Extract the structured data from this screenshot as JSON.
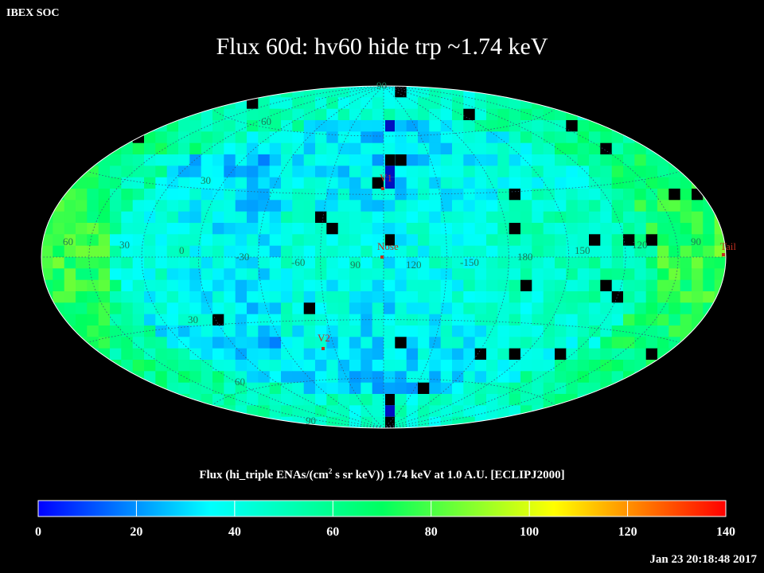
{
  "header": {
    "source": "IBEX SOC",
    "title": "Flux   60d: hv60 hide trp ~1.74 keV"
  },
  "map": {
    "projection": "Hammer-Aitoff",
    "frame": "ECLIPJ2000",
    "center_lon_deg": 90,
    "lat_labels": [
      "90",
      "60",
      "30",
      "30",
      "60",
      "90"
    ],
    "lon_labels": [
      "60",
      "30",
      "0",
      "-30",
      "-60",
      "90",
      "120",
      "-150",
      "180",
      "150",
      "120",
      "90"
    ],
    "markers": [
      {
        "label": "V1",
        "color": "#c03020"
      },
      {
        "label": "Nose",
        "color": "#c03020"
      },
      {
        "label": "V2",
        "color": "#c03020"
      },
      {
        "label": "Tail",
        "color": "#c03020"
      }
    ]
  },
  "colorbar": {
    "title_prefix": "Flux (hi_triple ENAs/(cm",
    "title_sup": "2",
    "title_suffix": " s sr keV))  1.74 keV at 1.0 A.U. [ECLIPJ2000]",
    "ticks": [
      "0",
      "20",
      "40",
      "60",
      "80",
      "100",
      "120",
      "140"
    ],
    "min": 0,
    "max": 140,
    "colors": [
      "#0000ff",
      "#00ffff",
      "#00ff60",
      "#ffff00",
      "#ff0000"
    ]
  },
  "footer": {
    "timestamp": "Jan 23 20:18:48 2017"
  }
}
